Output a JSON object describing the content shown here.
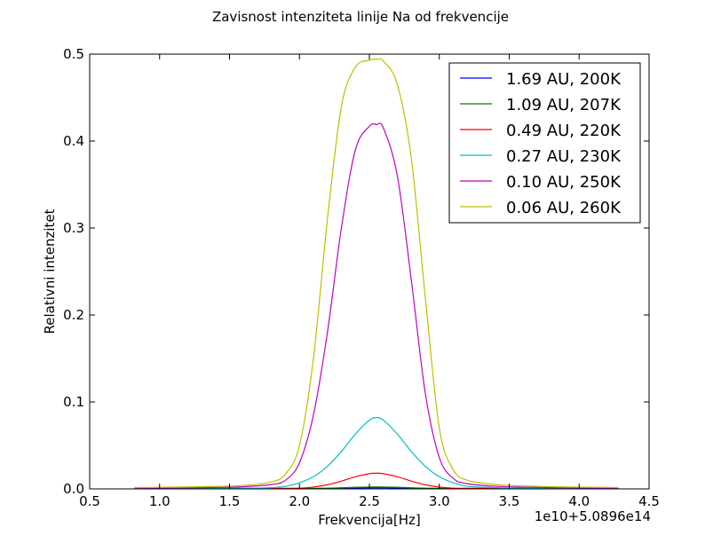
{
  "chart_data": {
    "type": "line",
    "title": "Zavisnost intenziteta linije Na od frekvencije",
    "xlabel": "Frekvencija[Hz]",
    "ylabel": "Relativni intenzitet",
    "offset_label": "1e10+5.0896e14",
    "xlim": [
      0.5,
      4.5
    ],
    "ylim": [
      0.0,
      0.5
    ],
    "xticks": [
      0.5,
      1.0,
      1.5,
      2.0,
      2.5,
      3.0,
      3.5,
      4.0,
      4.5
    ],
    "xtick_labels": [
      "0.5",
      "1.0",
      "1.5",
      "2.0",
      "2.5",
      "3.0",
      "3.5",
      "4.0",
      "4.5"
    ],
    "yticks": [
      0.0,
      0.1,
      0.2,
      0.3,
      0.4,
      0.5
    ],
    "ytick_labels": [
      "0.0",
      "0.1",
      "0.2",
      "0.3",
      "0.4",
      "0.5"
    ],
    "grid": false,
    "legend_position": "top-right",
    "x": [
      0.82,
      1.0,
      1.2,
      1.4,
      1.6,
      1.8,
      1.9,
      2.0,
      2.1,
      2.2,
      2.3,
      2.4,
      2.5,
      2.55,
      2.6,
      2.7,
      2.8,
      2.9,
      3.0,
      3.1,
      3.2,
      3.4,
      3.6,
      3.8,
      4.0,
      4.28
    ],
    "series": [
      {
        "name": "1.69 AU, 200K",
        "color": "#0000ff",
        "values": [
          0,
          0,
          0,
          0,
          0,
          0,
          0,
          0.0001,
          0.0002,
          0.0004,
          0.0007,
          0.001,
          0.0012,
          0.0012,
          0.0012,
          0.001,
          0.0007,
          0.0004,
          0.0002,
          0.0001,
          0,
          0,
          0,
          0,
          0,
          0
        ]
      },
      {
        "name": "1.09 AU, 207K",
        "color": "#008000",
        "values": [
          0,
          0,
          0,
          0,
          0,
          0,
          0.0001,
          0.0002,
          0.0004,
          0.0008,
          0.0013,
          0.0018,
          0.0021,
          0.0022,
          0.0021,
          0.0018,
          0.0013,
          0.0008,
          0.0004,
          0.0002,
          0.0001,
          0,
          0,
          0,
          0,
          0
        ]
      },
      {
        "name": "0.49 AU, 220K",
        "color": "#ff0000",
        "values": [
          0,
          0,
          0,
          0,
          0,
          0.0001,
          0.0003,
          0.0008,
          0.0021,
          0.0047,
          0.0089,
          0.014,
          0.0175,
          0.018,
          0.0175,
          0.014,
          0.0089,
          0.0047,
          0.0021,
          0.0008,
          0.0003,
          0,
          0,
          0,
          0,
          0
        ]
      },
      {
        "name": "0.27 AU, 230K",
        "color": "#00bfbf",
        "values": [
          0,
          0,
          0,
          0.0001,
          0.0004,
          0.0014,
          0.003,
          0.007,
          0.014,
          0.026,
          0.043,
          0.063,
          0.079,
          0.082,
          0.079,
          0.063,
          0.043,
          0.026,
          0.014,
          0.007,
          0.003,
          0.0014,
          0.0004,
          0.0001,
          0,
          0
        ]
      },
      {
        "name": "0.10 AU, 250K",
        "color": "#bf00bf",
        "values": [
          0.0008,
          0.001,
          0.0013,
          0.0016,
          0.0025,
          0.005,
          0.01,
          0.03,
          0.085,
          0.18,
          0.3,
          0.39,
          0.417,
          0.419,
          0.415,
          0.36,
          0.24,
          0.11,
          0.036,
          0.012,
          0.006,
          0.003,
          0.002,
          0.0015,
          0.0012,
          0.0009
        ]
      },
      {
        "name": "0.06 AU, 260K",
        "color": "#bfbf00",
        "values": [
          0.0015,
          0.0018,
          0.0022,
          0.0028,
          0.004,
          0.008,
          0.017,
          0.05,
          0.15,
          0.31,
          0.44,
          0.485,
          0.493,
          0.494,
          0.492,
          0.465,
          0.38,
          0.22,
          0.07,
          0.022,
          0.01,
          0.005,
          0.0035,
          0.0025,
          0.002,
          0.0016
        ]
      }
    ]
  }
}
